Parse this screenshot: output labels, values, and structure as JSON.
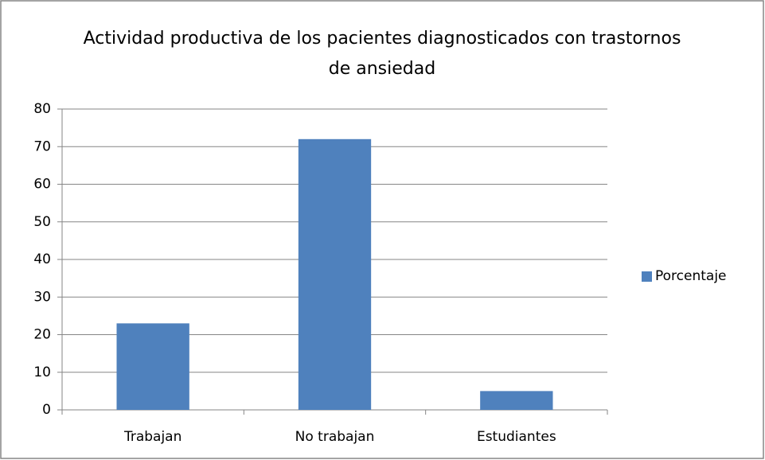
{
  "chart_data": {
    "type": "bar",
    "title": "Actividad productiva de los pacientes diagnosticados con trastornos de ansiedad",
    "categories": [
      "Trabajan",
      "No trabajan",
      "Estudiantes"
    ],
    "series": [
      {
        "name": "Porcentaje",
        "color": "#4f81bd",
        "values": [
          23,
          72,
          5
        ]
      }
    ],
    "ylim": [
      0,
      80
    ],
    "yticks": [
      0,
      10,
      20,
      30,
      40,
      50,
      60,
      70,
      80
    ],
    "grid": true,
    "legend": "right"
  }
}
